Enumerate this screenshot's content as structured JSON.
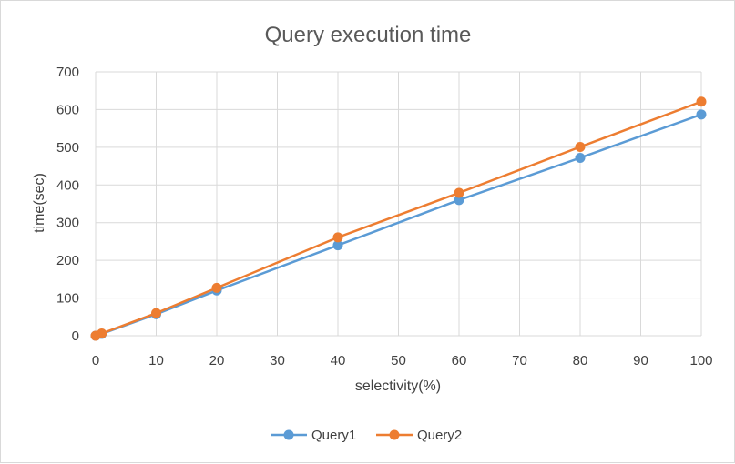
{
  "chart_data": {
    "type": "line",
    "title": "Query execution time",
    "xlabel": "selectivity(%)",
    "ylabel": "time(sec)",
    "xlim": [
      0,
      100
    ],
    "ylim": [
      0,
      700
    ],
    "x_ticks": [
      0,
      10,
      20,
      30,
      40,
      50,
      60,
      70,
      80,
      90,
      100
    ],
    "y_ticks": [
      0,
      100,
      200,
      300,
      400,
      500,
      600,
      700
    ],
    "grid": true,
    "legend_position": "bottom",
    "series": [
      {
        "name": "Query1",
        "color": "#5b9bd5",
        "x": [
          0,
          1,
          10,
          20,
          40,
          60,
          80,
          100
        ],
        "y": [
          0,
          5,
          57,
          120,
          240,
          360,
          472,
          587
        ]
      },
      {
        "name": "Query2",
        "color": "#ed7d31",
        "x": [
          0,
          1,
          10,
          20,
          40,
          60,
          80,
          100
        ],
        "y": [
          0,
          6,
          60,
          127,
          261,
          379,
          501,
          621
        ]
      }
    ]
  }
}
